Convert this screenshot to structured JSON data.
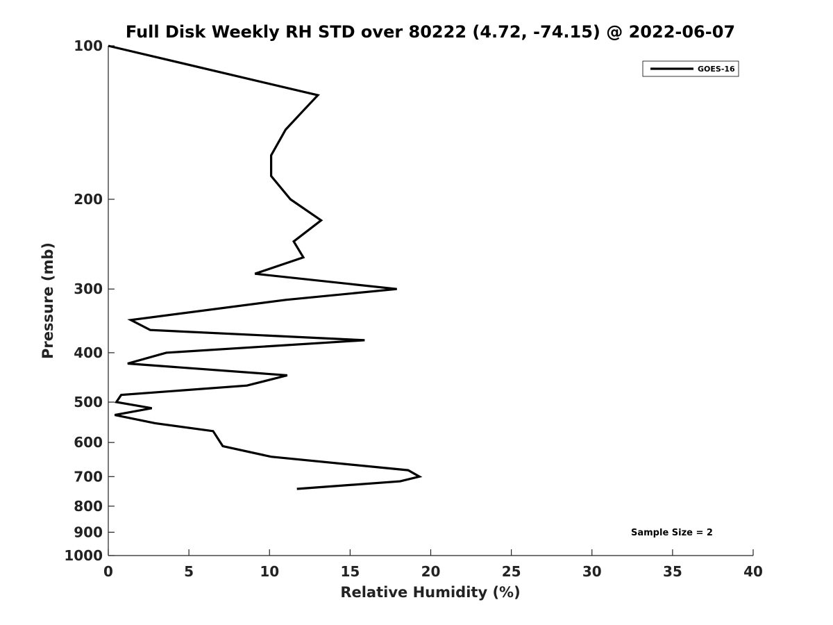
{
  "chart_data": {
    "type": "line",
    "title": "Full Disk Weekly RH STD over 80222 (4.72, -74.15) @ 2022-06-07",
    "xlabel": "Relative Humidity (%)",
    "ylabel": "Pressure (mb)",
    "xlim": [
      0,
      40
    ],
    "ylim": [
      100,
      1000
    ],
    "y_scale": "log",
    "y_inverted": true,
    "x_ticks": [
      0,
      5,
      10,
      15,
      20,
      25,
      30,
      35,
      40
    ],
    "y_ticks": [
      100,
      200,
      300,
      400,
      500,
      600,
      700,
      800,
      900,
      1000
    ],
    "grid": false,
    "legend_position": "top-right",
    "series": [
      {
        "name": "GOES-16",
        "color": "#000000",
        "points": [
          {
            "x": 0.0,
            "y": 100
          },
          {
            "x": 13.0,
            "y": 125
          },
          {
            "x": 12.0,
            "y": 135
          },
          {
            "x": 11.0,
            "y": 146
          },
          {
            "x": 10.1,
            "y": 164
          },
          {
            "x": 10.1,
            "y": 180
          },
          {
            "x": 11.3,
            "y": 200
          },
          {
            "x": 13.2,
            "y": 220
          },
          {
            "x": 11.5,
            "y": 242
          },
          {
            "x": 12.1,
            "y": 260
          },
          {
            "x": 9.1,
            "y": 280
          },
          {
            "x": 17.9,
            "y": 300
          },
          {
            "x": 11.0,
            "y": 315
          },
          {
            "x": 1.4,
            "y": 345
          },
          {
            "x": 2.6,
            "y": 361
          },
          {
            "x": 15.9,
            "y": 378
          },
          {
            "x": 3.6,
            "y": 400
          },
          {
            "x": 1.2,
            "y": 420
          },
          {
            "x": 11.1,
            "y": 443
          },
          {
            "x": 8.6,
            "y": 464
          },
          {
            "x": 0.8,
            "y": 484
          },
          {
            "x": 0.5,
            "y": 500
          },
          {
            "x": 2.7,
            "y": 514
          },
          {
            "x": 0.4,
            "y": 530
          },
          {
            "x": 2.9,
            "y": 550
          },
          {
            "x": 6.5,
            "y": 570
          },
          {
            "x": 7.1,
            "y": 610
          },
          {
            "x": 10.1,
            "y": 640
          },
          {
            "x": 18.6,
            "y": 680
          },
          {
            "x": 19.3,
            "y": 700
          },
          {
            "x": 18.1,
            "y": 715
          },
          {
            "x": 11.7,
            "y": 740
          }
        ]
      }
    ],
    "annotations": [
      {
        "text": "Sample Size = 2",
        "position": "bottom-right"
      }
    ]
  }
}
